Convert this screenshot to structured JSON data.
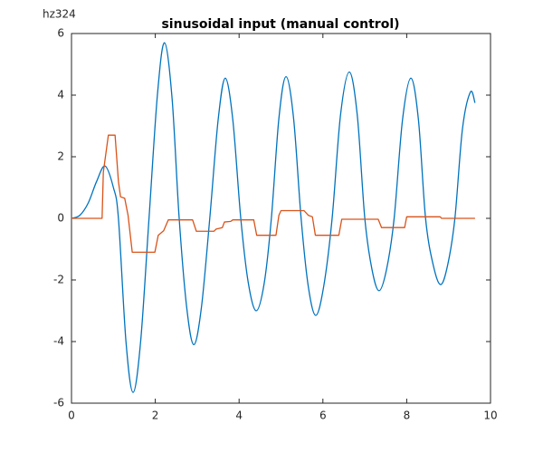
{
  "chart_data": {
    "type": "line",
    "title": "sinusoidal input (manual control)",
    "annotation": "hz324",
    "xlim": [
      0,
      10
    ],
    "xticks": [
      0,
      2,
      4,
      6,
      8,
      10
    ],
    "ylim": [
      -6,
      6
    ],
    "yticks": [
      -6,
      -4,
      -2,
      0,
      2,
      4,
      6
    ],
    "grid": false,
    "series": [
      {
        "color": "#0072bd",
        "smooth": true,
        "x": [
          0,
          0.2,
          0.4,
          0.6,
          0.8,
          1.0,
          1.12,
          1.3,
          1.47,
          1.65,
          1.85,
          2.05,
          2.22,
          2.4,
          2.57,
          2.75,
          2.92,
          3.1,
          3.3,
          3.5,
          3.67,
          3.85,
          4.04,
          4.22,
          4.41,
          4.6,
          4.77,
          4.95,
          5.12,
          5.3,
          5.48,
          5.65,
          5.83,
          6.02,
          6.22,
          6.42,
          6.63,
          6.82,
          7.0,
          7.17,
          7.34,
          7.52,
          7.7,
          7.9,
          8.1,
          8.28,
          8.45,
          8.63,
          8.81,
          8.98,
          9.15,
          9.33,
          9.52,
          9.63
        ],
        "values": [
          0,
          0.1,
          0.5,
          1.2,
          1.7,
          1.0,
          0,
          -4.0,
          -5.65,
          -4.0,
          0,
          4.0,
          5.7,
          3.9,
          0,
          -2.9,
          -4.1,
          -2.9,
          0,
          3.2,
          4.55,
          3.2,
          0,
          -2.1,
          -3.0,
          -2.1,
          0,
          3.25,
          4.6,
          3.25,
          0,
          -2.2,
          -3.15,
          -2.2,
          0,
          3.35,
          4.75,
          3.35,
          0,
          -1.65,
          -2.35,
          -1.65,
          0,
          3.2,
          4.55,
          3.2,
          0,
          -1.5,
          -2.15,
          -1.5,
          0,
          2.9,
          4.1,
          3.75
        ]
      },
      {
        "color": "#d95319",
        "smooth": false,
        "x": [
          0,
          0.73,
          0.76,
          0.88,
          1.04,
          1.12,
          1.17,
          1.27,
          1.35,
          1.45,
          1.99,
          2.07,
          2.2,
          2.31,
          2.89,
          2.98,
          3.4,
          3.45,
          3.6,
          3.65,
          3.8,
          3.85,
          4.35,
          4.42,
          4.88,
          4.95,
          5.0,
          5.55,
          5.65,
          5.75,
          5.82,
          6.38,
          6.45,
          7.32,
          7.4,
          7.95,
          8.0,
          8.8,
          8.83,
          9.63
        ],
        "values": [
          0,
          0,
          1.5,
          2.7,
          2.7,
          1.2,
          0.7,
          0.65,
          0.1,
          -1.1,
          -1.1,
          -0.55,
          -0.4,
          -0.05,
          -0.05,
          -0.42,
          -0.42,
          -0.35,
          -0.3,
          -0.12,
          -0.1,
          -0.05,
          -0.05,
          -0.55,
          -0.55,
          0.1,
          0.25,
          0.25,
          0.1,
          0.05,
          -0.55,
          -0.55,
          -0.03,
          -0.03,
          -0.3,
          -0.3,
          0.05,
          0.05,
          0,
          0
        ]
      }
    ]
  }
}
